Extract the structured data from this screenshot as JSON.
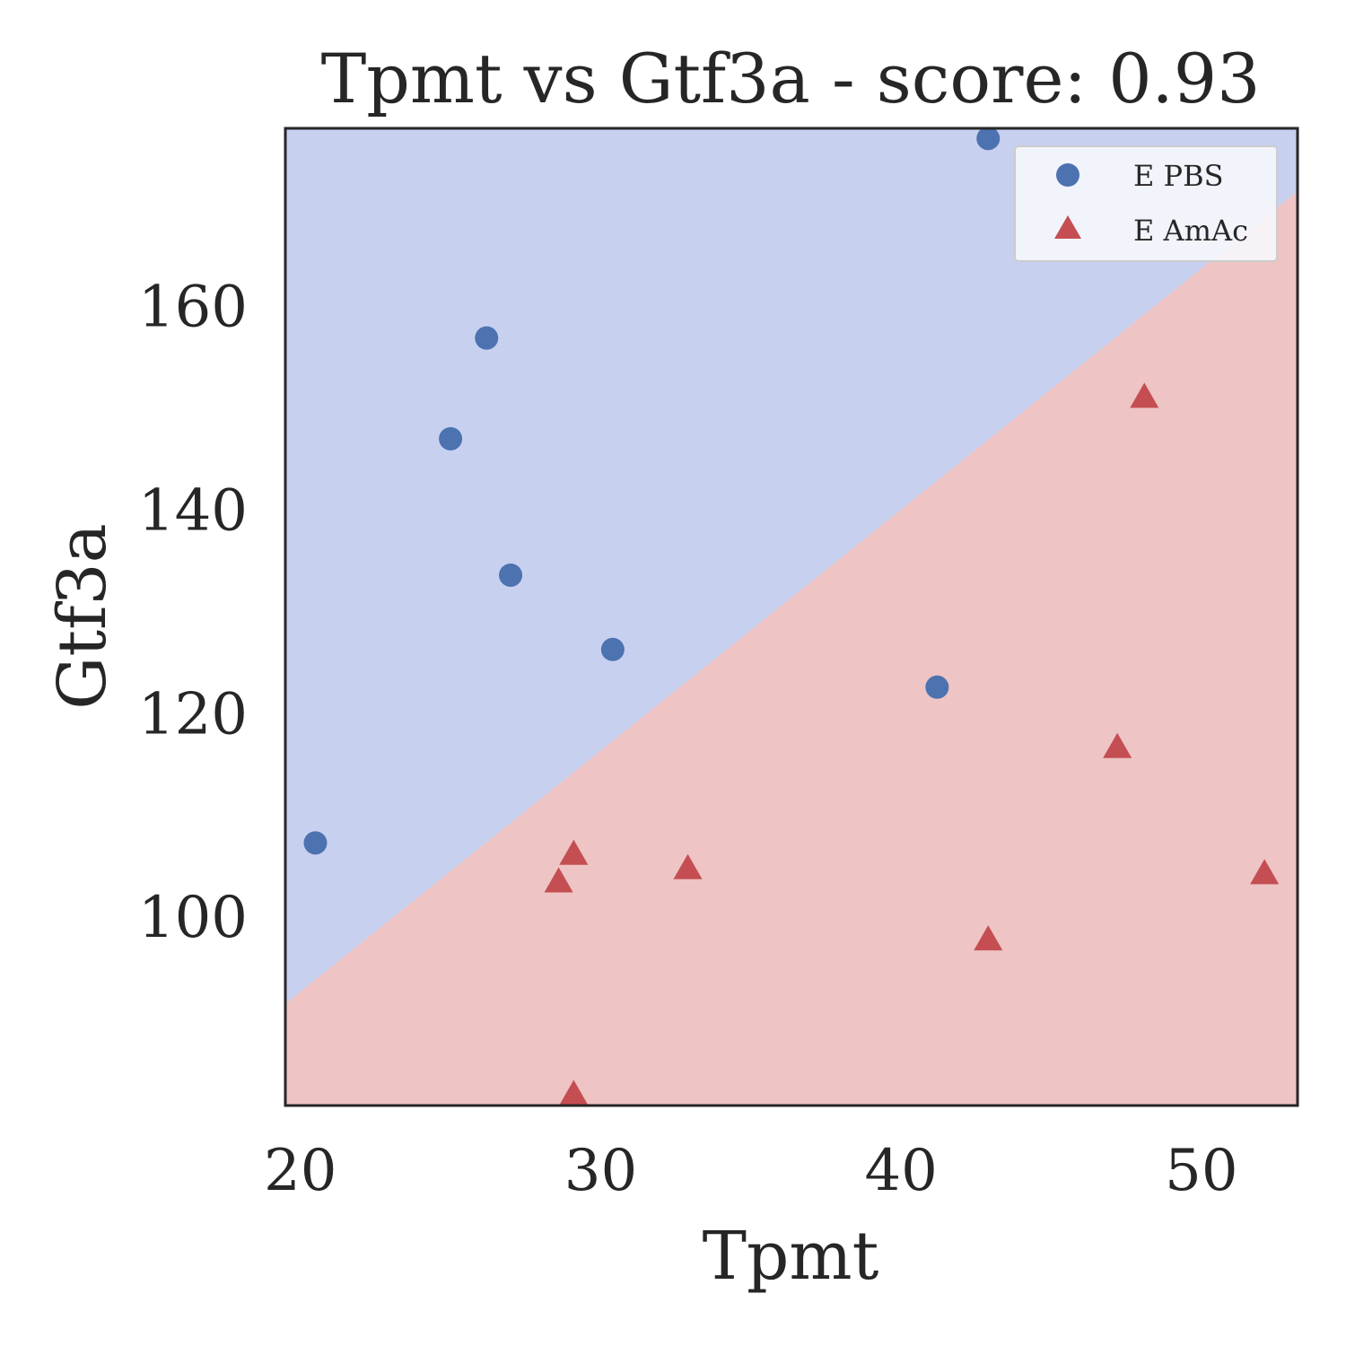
{
  "chart_data": {
    "type": "scatter",
    "title": "Tpmt vs Gtf3a - score: 0.93",
    "xlabel": "Tpmt",
    "ylabel": "Gtf3a",
    "xlim": [
      19.5,
      53.2
    ],
    "ylim": [
      81.5,
      177.5
    ],
    "xticks": [
      20,
      30,
      40,
      50
    ],
    "yticks": [
      100,
      120,
      140,
      160
    ],
    "grid": false,
    "legend_position": "top-right",
    "decision_boundary": {
      "x": [
        19.5,
        53.2
      ],
      "y": [
        91.5,
        171.3
      ]
    },
    "regions": {
      "above": "#c8d0f0",
      "below": "#eec4c4"
    },
    "series": [
      {
        "name": "E PBS",
        "marker": "circle",
        "color": "#4c72b0",
        "points": [
          [
            20.5,
            107.3
          ],
          [
            25.0,
            147.0
          ],
          [
            26.2,
            156.9
          ],
          [
            27.0,
            133.6
          ],
          [
            30.4,
            126.3
          ],
          [
            41.2,
            122.6
          ],
          [
            42.9,
            176.5
          ]
        ]
      },
      {
        "name": "E AmAc",
        "marker": "triangle",
        "color": "#c44e52",
        "points": [
          [
            28.6,
            103.5
          ],
          [
            29.1,
            106.2
          ],
          [
            29.1,
            82.6
          ],
          [
            32.9,
            104.8
          ],
          [
            42.9,
            97.8
          ],
          [
            47.2,
            116.7
          ],
          [
            48.1,
            151.1
          ],
          [
            52.1,
            104.3
          ]
        ]
      }
    ]
  }
}
